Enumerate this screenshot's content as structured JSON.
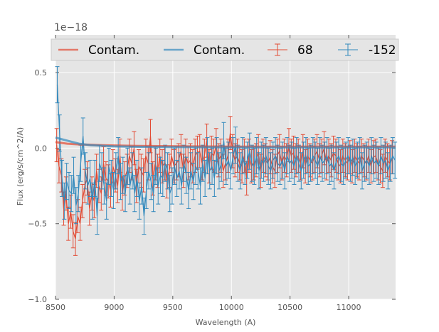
{
  "chart_data": {
    "type": "line",
    "xlabel": "Wavelength (A)",
    "ylabel": "Flux (erg/s/cm^2/A)",
    "offset_label": "1e−18",
    "xlim": [
      8500,
      11400
    ],
    "ylim": [
      -1.0,
      0.75
    ],
    "x_ticks": [
      8500,
      9000,
      9500,
      10000,
      10500,
      11000
    ],
    "x_tick_labels": [
      "8500",
      "9000",
      "9500",
      "10000",
      "10500",
      "11000"
    ],
    "y_ticks": [
      -1.0,
      -0.5,
      0.0,
      0.5
    ],
    "y_tick_labels": [
      "−1.0",
      "−0.5",
      "0.0",
      "0.5"
    ],
    "grid": true,
    "legend": {
      "placement": "top",
      "entries": [
        {
          "label": "Contam.",
          "kind": "line",
          "color": "#e24a33"
        },
        {
          "label": "Contam.",
          "kind": "line",
          "color": "#348abd"
        },
        {
          "label": "68",
          "kind": "errorbar",
          "color": "#e24a33"
        },
        {
          "label": "-152",
          "kind": "errorbar",
          "color": "#348abd"
        }
      ]
    },
    "colors": {
      "red": "#e24a33",
      "blue": "#348abd",
      "background": "#e5e5e5",
      "grid": "#ffffff"
    },
    "series": [
      {
        "name": "68",
        "color": "#e24a33",
        "x_start": 8510,
        "x_step": 20,
        "values": [
          0.02,
          -0.12,
          -0.18,
          -0.4,
          -0.3,
          -0.5,
          -0.42,
          -0.55,
          -0.6,
          -0.45,
          -0.5,
          -0.35,
          -0.25,
          -0.2,
          -0.4,
          -0.3,
          -0.35,
          -0.15,
          -0.25,
          -0.3,
          -0.1,
          -0.2,
          -0.22,
          -0.28,
          -0.12,
          -0.18,
          -0.25,
          -0.05,
          -0.3,
          -0.2,
          -0.15,
          -0.05,
          -0.1,
          0.0,
          -0.25,
          -0.12,
          -0.15,
          -0.18,
          -0.05,
          -0.1,
          0.08,
          -0.2,
          -0.1,
          -0.15,
          -0.05,
          -0.12,
          -0.1,
          -0.22,
          -0.15,
          -0.05,
          -0.12,
          -0.1,
          -0.08,
          -0.02,
          -0.15,
          -0.05,
          -0.1,
          -0.08,
          -0.12,
          -0.05,
          -0.03,
          -0.02,
          -0.1,
          -0.05,
          0.05,
          -0.12,
          -0.03,
          -0.05,
          0.02,
          -0.08,
          -0.05,
          -0.15,
          -0.1,
          -0.05,
          0.1,
          -0.02,
          -0.08,
          -0.05,
          -0.1,
          -0.12,
          -0.05,
          -0.2,
          -0.05,
          -0.12,
          -0.1,
          -0.08,
          -0.02,
          -0.15,
          -0.05,
          -0.08,
          -0.1,
          -0.06,
          -0.12,
          -0.15,
          -0.05,
          -0.02,
          -0.1,
          -0.05,
          -0.08,
          0.02,
          -0.05,
          -0.03,
          -0.08,
          -0.05,
          -0.1,
          -0.02,
          -0.12,
          -0.05,
          -0.08,
          -0.1,
          -0.05,
          -0.02,
          -0.08,
          -0.05,
          0.0,
          -0.1,
          -0.05,
          -0.08,
          -0.03,
          -0.05,
          -0.1,
          -0.12,
          -0.05,
          -0.08,
          -0.1,
          -0.06,
          -0.12,
          -0.05,
          -0.08,
          -0.1,
          -0.05,
          -0.08,
          -0.1,
          -0.05,
          -0.12,
          -0.06,
          -0.05,
          -0.1,
          -0.12,
          -0.15,
          -0.05,
          -0.08,
          -0.1,
          -0.06
        ],
        "error": 0.11
      },
      {
        "name": "-152",
        "color": "#348abd",
        "x_start": 8515,
        "x_step": 20,
        "values": [
          0.42,
          0.1,
          -0.2,
          -0.35,
          -0.22,
          -0.28,
          -0.3,
          -0.18,
          -0.38,
          -0.3,
          -0.1,
          0.08,
          -0.15,
          -0.25,
          -0.2,
          -0.35,
          -0.2,
          -0.45,
          -0.1,
          -0.15,
          -0.25,
          -0.35,
          -0.12,
          -0.2,
          -0.28,
          -0.15,
          -0.05,
          -0.22,
          -0.18,
          -0.3,
          -0.12,
          -0.25,
          -0.15,
          -0.3,
          -0.2,
          -0.35,
          -0.25,
          -0.45,
          -0.28,
          -0.15,
          -0.22,
          -0.3,
          -0.12,
          -0.25,
          -0.18,
          -0.2,
          -0.1,
          -0.15,
          -0.3,
          -0.25,
          -0.12,
          -0.2,
          -0.15,
          -0.25,
          -0.1,
          -0.18,
          -0.28,
          -0.15,
          -0.22,
          -0.12,
          -0.15,
          -0.25,
          -0.1,
          -0.2,
          -0.05,
          -0.15,
          -0.12,
          -0.2,
          -0.05,
          -0.15,
          -0.1,
          0.05,
          -0.12,
          -0.08,
          -0.15,
          -0.05,
          0.02,
          -0.1,
          -0.15,
          -0.05,
          -0.12,
          -0.08,
          -0.02,
          -0.1,
          -0.12,
          -0.05,
          -0.15,
          -0.08,
          -0.1,
          -0.05,
          -0.12,
          -0.15,
          -0.08,
          -0.05,
          -0.1,
          -0.12,
          -0.08,
          -0.15,
          -0.05,
          -0.1,
          -0.08,
          -0.12,
          -0.05,
          -0.1,
          -0.15,
          -0.08,
          -0.05,
          -0.12,
          -0.1,
          -0.05,
          -0.08,
          -0.12,
          -0.05,
          -0.1,
          -0.08,
          -0.05,
          -0.12,
          -0.1,
          -0.15,
          -0.08,
          -0.05,
          -0.1,
          -0.12,
          -0.08,
          -0.05,
          -0.1,
          -0.06,
          -0.12,
          -0.08,
          -0.05,
          -0.15,
          -0.1,
          -0.08,
          -0.12,
          -0.05,
          -0.1,
          -0.08,
          -0.12,
          -0.05,
          -0.1,
          -0.08,
          -0.15,
          -0.1,
          -0.05,
          -0.08
        ],
        "error": 0.12
      }
    ],
    "contam": [
      {
        "name": "Contam.",
        "color": "#e24a33",
        "x": [
          8500,
          8600,
          8700,
          8900,
          9200,
          10000,
          11400
        ],
        "values": [
          0.04,
          0.03,
          0.025,
          0.02,
          0.015,
          0.01,
          0.01
        ]
      },
      {
        "name": "Contam.",
        "color": "#348abd",
        "x": [
          8500,
          8600,
          8700,
          8800,
          9000,
          9300,
          10000,
          11400
        ],
        "values": [
          0.07,
          0.05,
          0.03,
          0.02,
          0.012,
          0.008,
          0.005,
          0.005
        ]
      }
    ]
  }
}
